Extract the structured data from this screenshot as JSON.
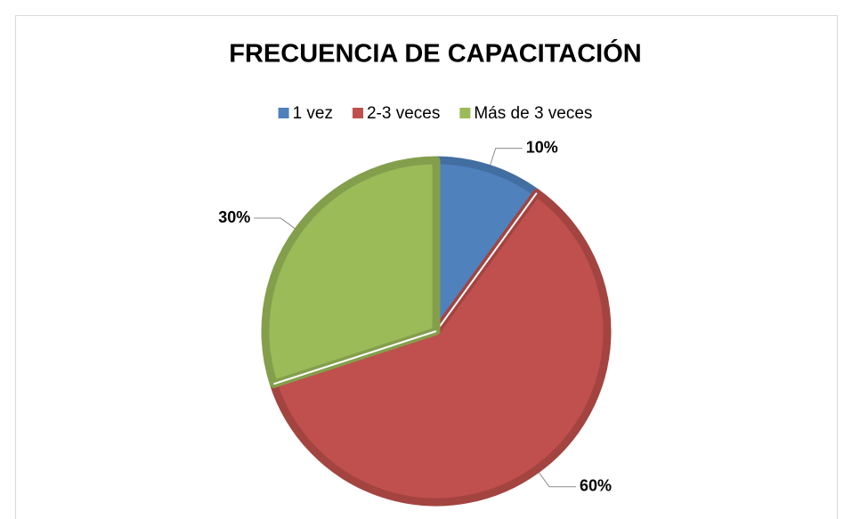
{
  "chart_data": {
    "type": "pie",
    "title": "FRECUENCIA DE CAPACITACIÓN",
    "categories": [
      "1 vez",
      "2-3 veces",
      "Más de 3 veces"
    ],
    "values": [
      10,
      60,
      30
    ],
    "value_labels": [
      "10%",
      "60%",
      "30%"
    ],
    "colors": [
      "#4f81bd",
      "#c0504d",
      "#9bbb59"
    ],
    "legend": "top"
  }
}
